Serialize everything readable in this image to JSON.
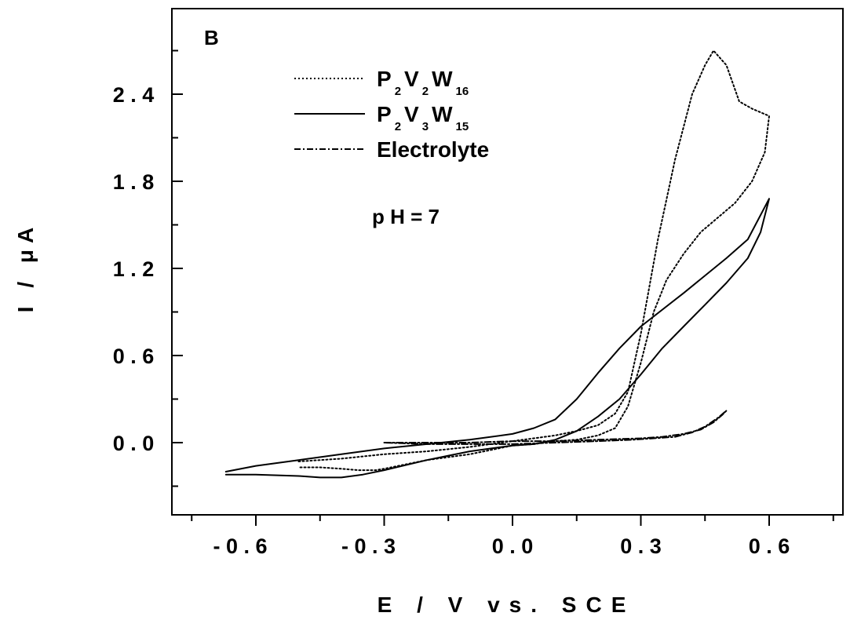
{
  "chart_data": {
    "type": "line",
    "panel_label": "B",
    "xlabel": "E / V vs. SCE",
    "ylabel": "I / μA",
    "xlim": [
      -0.8,
      0.85
    ],
    "ylim": [
      -0.5,
      2.95
    ],
    "x_ticks": [
      -0.6,
      -0.3,
      0.0,
      0.3,
      0.6
    ],
    "x_tick_labels": [
      "- 0 . 6",
      "- 0 . 3",
      "0 . 0",
      "0 . 3",
      "0 . 6"
    ],
    "y_ticks": [
      0.0,
      0.6,
      1.2,
      1.8,
      2.4
    ],
    "y_tick_labels": [
      "0 . 0",
      "0 . 6",
      "1 . 2",
      "1 . 8",
      "2 . 4"
    ],
    "annotation": "p H = 7",
    "grid": false,
    "legend_position": "top-left",
    "series": [
      {
        "name": "P2V2W16",
        "legend_parts": [
          [
            "P",
            "2"
          ],
          [
            "V",
            "2"
          ],
          [
            "W",
            "16"
          ]
        ],
        "style": "dotted",
        "x": [
          -0.5,
          -0.45,
          -0.4,
          -0.3,
          -0.2,
          -0.1,
          0.0,
          0.05,
          0.1,
          0.15,
          0.2,
          0.24,
          0.27,
          0.3,
          0.34,
          0.38,
          0.42,
          0.45,
          0.47,
          0.5,
          0.53,
          0.56,
          0.6,
          0.59,
          0.56,
          0.52,
          0.48,
          0.44,
          0.4,
          0.36,
          0.33,
          0.3,
          0.27,
          0.24,
          0.2,
          0.15,
          0.1,
          0.05,
          0.0,
          -0.05,
          -0.1,
          -0.2,
          -0.3,
          -0.32,
          -0.36,
          -0.4,
          -0.45,
          -0.5
        ],
        "y": [
          -0.13,
          -0.12,
          -0.11,
          -0.08,
          -0.06,
          -0.03,
          0.01,
          0.03,
          0.05,
          0.08,
          0.12,
          0.2,
          0.35,
          0.75,
          1.4,
          1.95,
          2.4,
          2.6,
          2.7,
          2.6,
          2.35,
          2.3,
          2.25,
          2.0,
          1.8,
          1.65,
          1.55,
          1.45,
          1.3,
          1.12,
          0.9,
          0.55,
          0.25,
          0.1,
          0.05,
          0.02,
          0.01,
          -0.01,
          -0.02,
          -0.05,
          -0.08,
          -0.12,
          -0.18,
          -0.19,
          -0.19,
          -0.18,
          -0.17,
          -0.17
        ]
      },
      {
        "name": "P2V3W15",
        "legend_parts": [
          [
            "P",
            "2"
          ],
          [
            "V",
            "3"
          ],
          [
            "W",
            "15"
          ]
        ],
        "style": "solid",
        "x": [
          -0.67,
          -0.6,
          -0.5,
          -0.4,
          -0.3,
          -0.2,
          -0.1,
          0.0,
          0.05,
          0.1,
          0.15,
          0.2,
          0.25,
          0.3,
          0.4,
          0.5,
          0.55,
          0.6,
          0.58,
          0.55,
          0.5,
          0.45,
          0.4,
          0.35,
          0.3,
          0.25,
          0.2,
          0.15,
          0.1,
          0.05,
          0.0,
          -0.05,
          -0.1,
          -0.15,
          -0.2,
          -0.3,
          -0.35,
          -0.4,
          -0.45,
          -0.5,
          -0.6,
          -0.67
        ],
        "y": [
          -0.2,
          -0.16,
          -0.12,
          -0.08,
          -0.04,
          -0.01,
          0.02,
          0.06,
          0.1,
          0.16,
          0.3,
          0.48,
          0.65,
          0.8,
          1.03,
          1.27,
          1.4,
          1.68,
          1.45,
          1.27,
          1.1,
          0.95,
          0.8,
          0.65,
          0.47,
          0.3,
          0.18,
          0.08,
          0.02,
          -0.01,
          -0.02,
          -0.04,
          -0.06,
          -0.09,
          -0.12,
          -0.19,
          -0.22,
          -0.24,
          -0.24,
          -0.23,
          -0.22,
          -0.22
        ]
      },
      {
        "name": "Electrolyte",
        "style": "dashdot",
        "x": [
          -0.3,
          -0.2,
          -0.1,
          0.0,
          0.1,
          0.2,
          0.3,
          0.35,
          0.4,
          0.44,
          0.47,
          0.49,
          0.5,
          0.48,
          0.45,
          0.42,
          0.38,
          0.33,
          0.28,
          0.2,
          0.1,
          0.0,
          -0.1,
          -0.2,
          -0.3
        ],
        "y": [
          0.0,
          0.0,
          0.0,
          0.01,
          0.01,
          0.02,
          0.03,
          0.04,
          0.06,
          0.09,
          0.14,
          0.19,
          0.22,
          0.17,
          0.11,
          0.07,
          0.04,
          0.03,
          0.02,
          0.01,
          0.0,
          -0.01,
          -0.01,
          -0.01,
          0.0
        ]
      }
    ]
  }
}
